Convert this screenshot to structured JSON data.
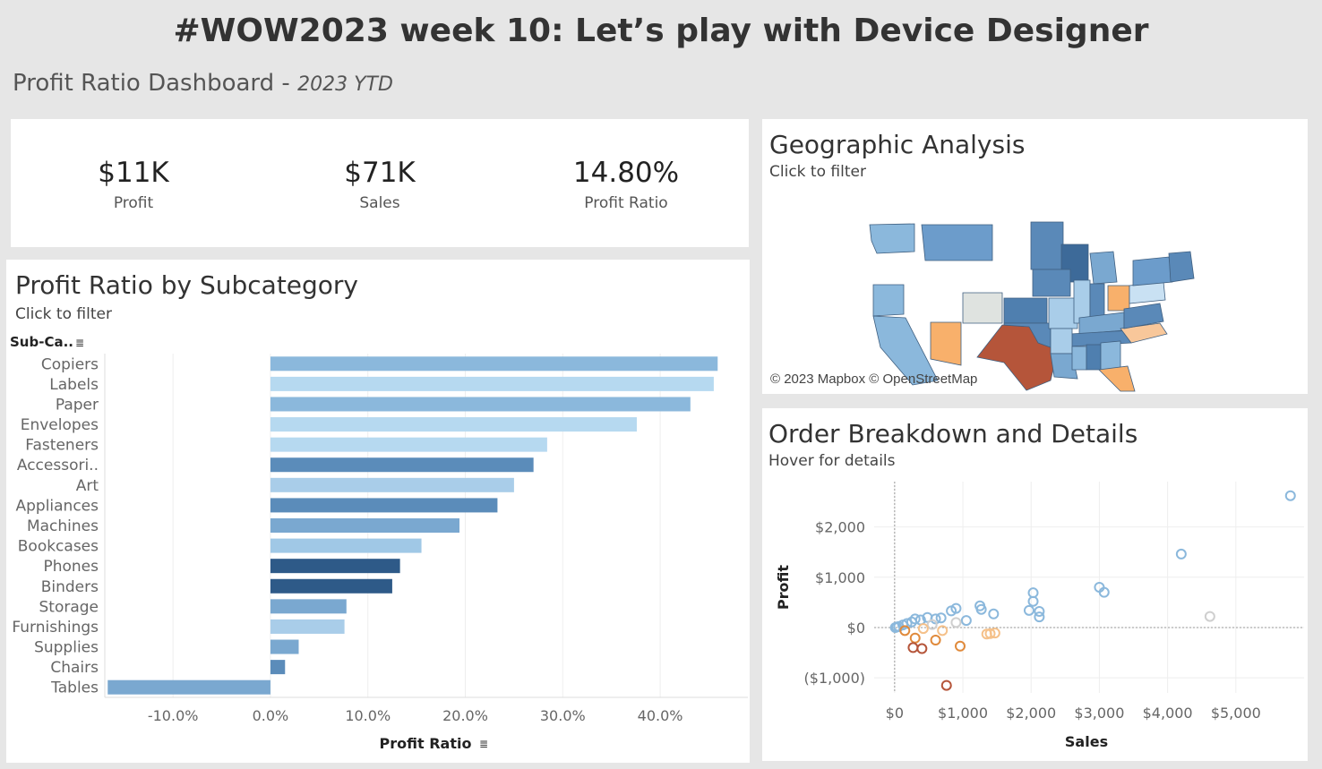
{
  "header": {
    "title": "#WOW2023 week 10: Let’s play with Device Designer",
    "subtitle": "Profit Ratio Dashboard",
    "subtitle_sep": " - ",
    "subtitle_period": "2023 YTD"
  },
  "kpis": [
    {
      "value": "$11K",
      "label": "Profit"
    },
    {
      "value": "$71K",
      "label": "Sales"
    },
    {
      "value": "14.80%",
      "label": "Profit Ratio"
    }
  ],
  "bar_panel": {
    "title": "Profit Ratio by Subcategory",
    "hint": "Click to filter",
    "dim_header": "Sub-Ca.."
  },
  "geo_panel": {
    "title": "Geographic Analysis",
    "hint": "Click to filter",
    "credit": "© 2023 Mapbox © OpenStreetMap"
  },
  "scatter_panel": {
    "title": "Order Breakdown and Details",
    "hint": "Hover for details"
  },
  "colors": {
    "negative_strong": "#b5553a",
    "neg_mid": "#e08a3b",
    "neg_light": "#f5c18a",
    "neutral": "#cfcfcf",
    "pos_light": "#b6d9f0",
    "pos_mid": "#8bb8dc",
    "pos_strong": "#5b8cba",
    "pos_dark": "#2e5a88"
  },
  "chart_data": [
    {
      "type": "bar",
      "orientation": "horizontal",
      "xlabel": "Profit Ratio",
      "ylabel": "Sub-Ca..",
      "categories": [
        "Copiers",
        "Labels",
        "Paper",
        "Envelopes",
        "Fasteners",
        "Accessori..",
        "Art",
        "Appliances",
        "Machines",
        "Bookcases",
        "Phones",
        "Binders",
        "Storage",
        "Furnishings",
        "Supplies",
        "Chairs",
        "Tables"
      ],
      "values": [
        45.9,
        45.5,
        43.1,
        37.6,
        28.4,
        27.0,
        25.0,
        23.3,
        19.4,
        15.5,
        13.3,
        12.5,
        7.8,
        7.6,
        2.9,
        1.5,
        -16.7
      ],
      "colors": [
        "#8bb8dc",
        "#b6d9f0",
        "#8bb8dc",
        "#b6d9f0",
        "#b6d9f0",
        "#5b8cba",
        "#a9cde9",
        "#5b8cba",
        "#7aa8d0",
        "#a0c8e6",
        "#2e5a88",
        "#2e5a88",
        "#7aa8d0",
        "#a9cde9",
        "#7aa8d0",
        "#5b8cba",
        "#7aa8d0"
      ],
      "xlim": [
        -17,
        49
      ],
      "xticks": [
        -10,
        0,
        10,
        20,
        30,
        40
      ],
      "xtick_labels": [
        "-10.0%",
        "0.0%",
        "10.0%",
        "20.0%",
        "30.0%",
        "40.0%"
      ],
      "grid": true
    },
    {
      "type": "scatter",
      "xlabel": "Sales",
      "ylabel": "Profit",
      "xlim": [
        -300,
        6000
      ],
      "ylim": [
        -1300,
        2900
      ],
      "xticks": [
        0,
        1000,
        2000,
        3000,
        4000,
        5000
      ],
      "xtick_labels": [
        "$0",
        "$1,000",
        "$2,000",
        "$3,000",
        "$4,000",
        "$5,000"
      ],
      "yticks": [
        -1000,
        0,
        1000,
        2000
      ],
      "ytick_labels": [
        "($1,000)",
        "$0",
        "$1,000",
        "$2,000"
      ],
      "grid": true,
      "points": [
        {
          "x": 5800,
          "y": 2620,
          "c": "#8bb8dc"
        },
        {
          "x": 4200,
          "y": 1460,
          "c": "#8bb8dc"
        },
        {
          "x": 4620,
          "y": 220,
          "c": "#cfcfcf"
        },
        {
          "x": 3000,
          "y": 800,
          "c": "#8bb8dc"
        },
        {
          "x": 3070,
          "y": 700,
          "c": "#8bb8dc"
        },
        {
          "x": 2030,
          "y": 690,
          "c": "#8bb8dc"
        },
        {
          "x": 2030,
          "y": 520,
          "c": "#8bb8dc"
        },
        {
          "x": 2120,
          "y": 320,
          "c": "#8bb8dc"
        },
        {
          "x": 2120,
          "y": 210,
          "c": "#8bb8dc"
        },
        {
          "x": 1970,
          "y": 340,
          "c": "#8bb8dc"
        },
        {
          "x": 1250,
          "y": 430,
          "c": "#8bb8dc"
        },
        {
          "x": 1270,
          "y": 360,
          "c": "#8bb8dc"
        },
        {
          "x": 1450,
          "y": 270,
          "c": "#8bb8dc"
        },
        {
          "x": 900,
          "y": 380,
          "c": "#8bb8dc"
        },
        {
          "x": 830,
          "y": 330,
          "c": "#8bb8dc"
        },
        {
          "x": 1050,
          "y": 140,
          "c": "#8bb8dc"
        },
        {
          "x": 900,
          "y": 100,
          "c": "#cfcfcf"
        },
        {
          "x": 680,
          "y": 190,
          "c": "#8bb8dc"
        },
        {
          "x": 600,
          "y": 170,
          "c": "#8bb8dc"
        },
        {
          "x": 480,
          "y": 200,
          "c": "#8bb8dc"
        },
        {
          "x": 380,
          "y": 150,
          "c": "#8bb8dc"
        },
        {
          "x": 300,
          "y": 170,
          "c": "#8bb8dc"
        },
        {
          "x": 250,
          "y": 110,
          "c": "#8bb8dc"
        },
        {
          "x": 180,
          "y": 80,
          "c": "#8bb8dc"
        },
        {
          "x": 120,
          "y": 50,
          "c": "#8bb8dc"
        },
        {
          "x": 60,
          "y": 20,
          "c": "#8bb8dc"
        },
        {
          "x": 30,
          "y": 10,
          "c": "#8bb8dc"
        },
        {
          "x": 10,
          "y": 0,
          "c": "#8bb8dc"
        },
        {
          "x": 550,
          "y": 60,
          "c": "#cfcfcf"
        },
        {
          "x": 420,
          "y": -20,
          "c": "#f5c18a"
        },
        {
          "x": 700,
          "y": -60,
          "c": "#f5c18a"
        },
        {
          "x": 1350,
          "y": -130,
          "c": "#f5c18a"
        },
        {
          "x": 1400,
          "y": -120,
          "c": "#f5c18a"
        },
        {
          "x": 1470,
          "y": -110,
          "c": "#f5c18a"
        },
        {
          "x": 150,
          "y": -60,
          "c": "#e08a3b"
        },
        {
          "x": 600,
          "y": -250,
          "c": "#e08a3b"
        },
        {
          "x": 960,
          "y": -370,
          "c": "#e08a3b"
        },
        {
          "x": 300,
          "y": -210,
          "c": "#e08a3b"
        },
        {
          "x": 270,
          "y": -400,
          "c": "#b5553a"
        },
        {
          "x": 400,
          "y": -420,
          "c": "#b5553a"
        },
        {
          "x": 760,
          "y": -1150,
          "c": "#b5553a"
        }
      ]
    }
  ]
}
